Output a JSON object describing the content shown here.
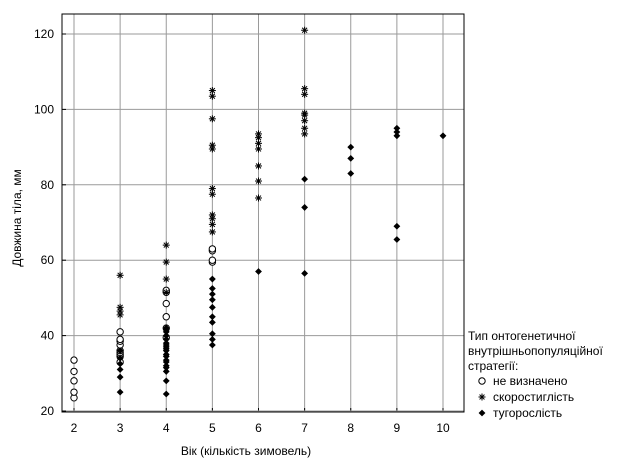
{
  "chart_data": {
    "type": "scatter",
    "xlabel": "Вік (кількість зимовель)",
    "ylabel": "Довжина тіла, мм",
    "xlim": [
      2,
      10
    ],
    "ylim": [
      20,
      125
    ],
    "xticks": [
      2,
      3,
      4,
      5,
      6,
      7,
      8,
      9,
      10
    ],
    "yticks": [
      20,
      40,
      60,
      80,
      100,
      120
    ],
    "grid": true,
    "legend": {
      "title": [
        "Тип онтогенетичної",
        "внутрішньопопуляційної",
        "стратегії:"
      ],
      "placement": "bottom-right, outside plot"
    },
    "series": [
      {
        "name": "не визначено",
        "marker": "circle-open",
        "points": [
          [
            2,
            23.5
          ],
          [
            2,
            25
          ],
          [
            2,
            28
          ],
          [
            2,
            30.5
          ],
          [
            2,
            33.5
          ],
          [
            3,
            33
          ],
          [
            3,
            34.5
          ],
          [
            3,
            35
          ],
          [
            3,
            35.5
          ],
          [
            3,
            36
          ],
          [
            3,
            37.5
          ],
          [
            3,
            38.5
          ],
          [
            3,
            39
          ],
          [
            3,
            41
          ],
          [
            4,
            39.5
          ],
          [
            4,
            42
          ],
          [
            4,
            45
          ],
          [
            4,
            48.5
          ],
          [
            4,
            51.5
          ],
          [
            4,
            52
          ],
          [
            5,
            59.5
          ],
          [
            5,
            60
          ],
          [
            5,
            62.5
          ],
          [
            5,
            63
          ]
        ]
      },
      {
        "name": "скоростиглість",
        "marker": "asterisk",
        "points": [
          [
            3,
            45.5
          ],
          [
            3,
            46.5
          ],
          [
            3,
            47.5
          ],
          [
            3,
            56
          ],
          [
            4,
            51.5
          ],
          [
            4,
            55
          ],
          [
            4,
            59.5
          ],
          [
            4,
            64
          ],
          [
            5,
            67.5
          ],
          [
            5,
            69.5
          ],
          [
            5,
            71
          ],
          [
            5,
            72
          ],
          [
            5,
            77.5
          ],
          [
            5,
            79
          ],
          [
            5,
            89.5
          ],
          [
            5,
            90.5
          ],
          [
            5,
            97.5
          ],
          [
            5,
            103.5
          ],
          [
            5,
            105
          ],
          [
            6,
            76.5
          ],
          [
            6,
            81
          ],
          [
            6,
            85
          ],
          [
            6,
            89.5
          ],
          [
            6,
            91
          ],
          [
            6,
            92.5
          ],
          [
            6,
            93.5
          ],
          [
            7,
            93.5
          ],
          [
            7,
            95
          ],
          [
            7,
            97
          ],
          [
            7,
            98.5
          ],
          [
            7,
            99
          ],
          [
            7,
            104
          ],
          [
            7,
            105.5
          ],
          [
            7,
            121
          ]
        ]
      },
      {
        "name": "тугорослість",
        "marker": "diamond-filled",
        "points": [
          [
            3,
            25
          ],
          [
            3,
            29
          ],
          [
            3,
            31
          ],
          [
            3,
            32.5
          ],
          [
            3,
            34
          ],
          [
            3,
            36
          ],
          [
            4,
            24.5
          ],
          [
            4,
            28
          ],
          [
            4,
            30.5
          ],
          [
            4,
            31.5
          ],
          [
            4,
            32
          ],
          [
            4,
            33
          ],
          [
            4,
            33.5
          ],
          [
            4,
            34.5
          ],
          [
            4,
            35
          ],
          [
            4,
            36
          ],
          [
            4,
            36.5
          ],
          [
            4,
            37
          ],
          [
            4,
            37.5
          ],
          [
            4,
            38
          ],
          [
            4,
            39
          ],
          [
            4,
            40
          ],
          [
            4,
            41
          ],
          [
            4,
            41.5
          ],
          [
            4,
            42
          ],
          [
            5,
            37.5
          ],
          [
            5,
            39
          ],
          [
            5,
            40.5
          ],
          [
            5,
            43.5
          ],
          [
            5,
            45
          ],
          [
            5,
            47.5
          ],
          [
            5,
            49.5
          ],
          [
            5,
            51
          ],
          [
            5,
            52.5
          ],
          [
            5,
            55
          ],
          [
            6,
            57
          ],
          [
            7,
            56.5
          ],
          [
            7,
            74
          ],
          [
            7,
            81.5
          ],
          [
            8,
            83
          ],
          [
            8,
            87
          ],
          [
            8,
            90
          ],
          [
            9,
            65.5
          ],
          [
            9,
            69
          ],
          [
            9,
            93
          ],
          [
            9,
            94
          ],
          [
            9,
            95
          ],
          [
            10,
            93
          ]
        ]
      }
    ]
  }
}
